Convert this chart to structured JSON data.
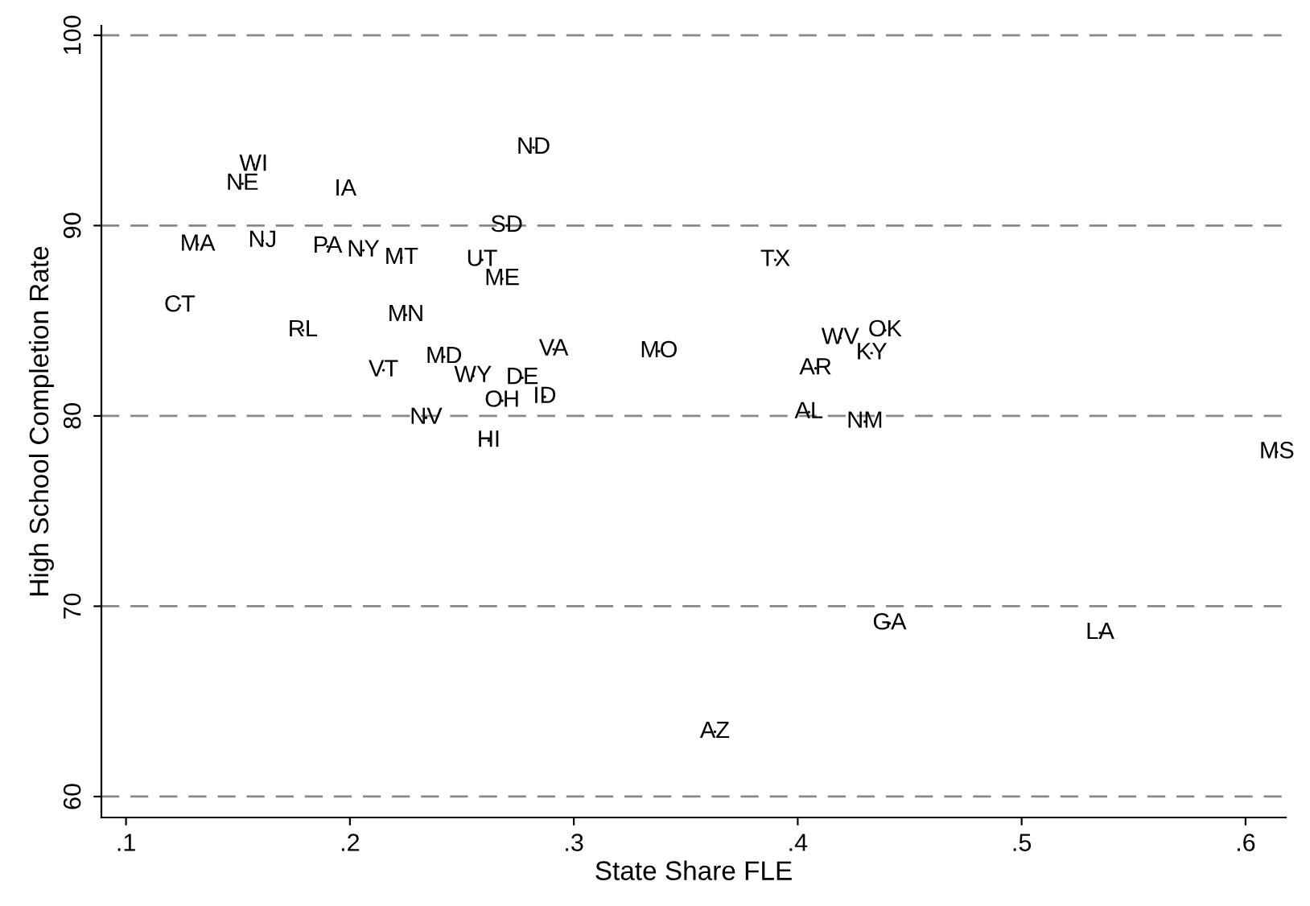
{
  "chart_data": {
    "type": "scatter",
    "xlabel": "State Share FLE",
    "ylabel": "High School Completion Rate",
    "xlim": [
      0.089,
      0.618
    ],
    "ylim": [
      58.9,
      100.5
    ],
    "xticks": [
      {
        "value": 0.1,
        "label": ".1"
      },
      {
        "value": 0.2,
        "label": ".2"
      },
      {
        "value": 0.3,
        "label": ".3"
      },
      {
        "value": 0.4,
        "label": ".4"
      },
      {
        "value": 0.5,
        "label": ".5"
      },
      {
        "value": 0.6,
        "label": ".6"
      }
    ],
    "yticks": [
      60,
      70,
      80,
      90,
      100
    ],
    "grid": "y",
    "marker": "none",
    "series": [
      {
        "color": "#000000",
        "x": [
          0.157,
          0.152,
          0.198,
          0.282,
          0.132,
          0.161,
          0.19,
          0.206,
          0.223,
          0.27,
          0.259,
          0.268,
          0.39,
          0.124,
          0.179,
          0.225,
          0.215,
          0.242,
          0.255,
          0.291,
          0.277,
          0.268,
          0.287,
          0.234,
          0.262,
          0.338,
          0.408,
          0.419,
          0.439,
          0.433,
          0.405,
          0.43,
          0.614,
          0.441,
          0.535,
          0.363
        ],
        "values": [
          93.2,
          92.2,
          91.9,
          94.1,
          89.0,
          89.2,
          88.9,
          88.7,
          88.3,
          90.0,
          88.2,
          87.2,
          88.2,
          85.8,
          84.5,
          85.3,
          82.4,
          83.1,
          82.1,
          83.5,
          82.0,
          80.8,
          81.0,
          79.9,
          78.7,
          83.4,
          82.5,
          84.1,
          84.5,
          83.3,
          80.2,
          79.7,
          78.1,
          69.1,
          68.6,
          63.4
        ],
        "value_labels": [
          "WI",
          "NE",
          "IA",
          "ND",
          "MA",
          "NJ",
          "PA",
          "NY",
          "MT",
          "SD",
          "UT",
          "ME",
          "TX",
          "CT",
          "RL",
          "MN",
          "VT",
          "MD",
          "WY",
          "VA",
          "DE",
          "OH",
          "ID",
          "NV",
          "HI",
          "MO",
          "AR",
          "WV",
          "OK",
          "KY",
          "AL",
          "NM",
          "MS",
          "GA",
          "LA",
          "AZ"
        ]
      }
    ]
  }
}
